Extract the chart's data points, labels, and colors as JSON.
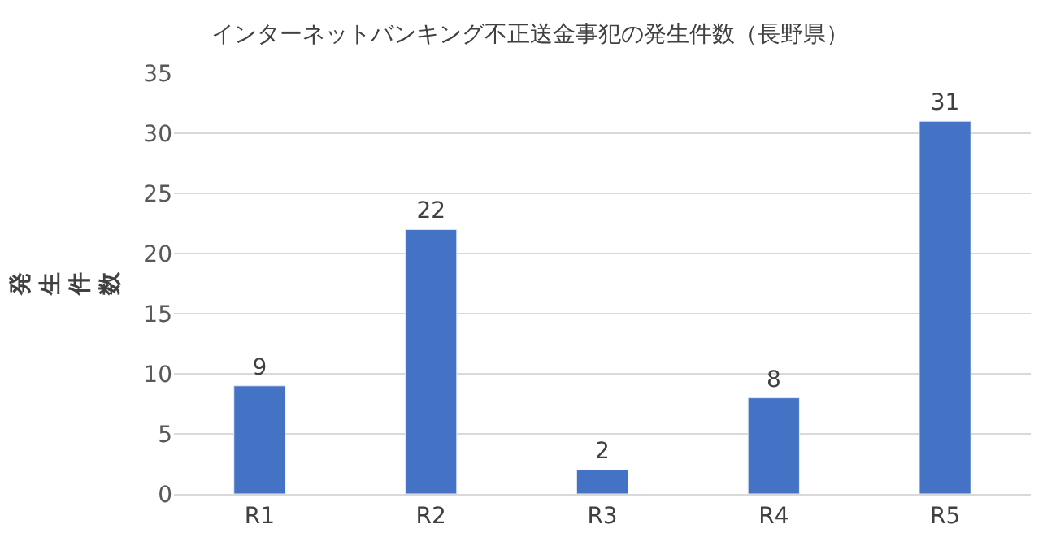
{
  "chart_data": {
    "type": "bar",
    "title": "インターネットバンキング不正送金事犯の発生件数（長野県）",
    "ylabel": "発生件数",
    "categories": [
      "R1",
      "R2",
      "R3",
      "R4",
      "R5"
    ],
    "values": [
      9,
      22,
      2,
      8,
      31
    ],
    "color": "#4472c4",
    "ylim": [
      0,
      35
    ],
    "yticks": [
      0,
      5,
      10,
      15,
      20,
      25,
      30,
      35
    ],
    "grid": "y",
    "data_labels": true
  }
}
